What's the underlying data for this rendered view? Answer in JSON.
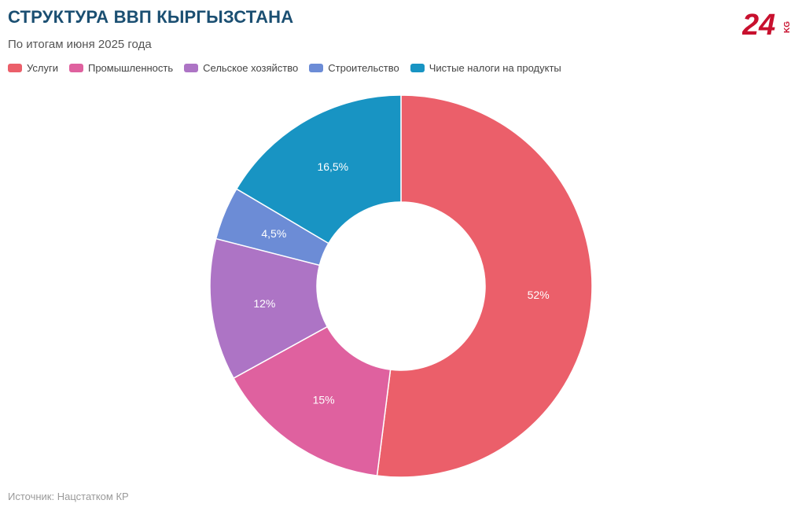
{
  "header": {
    "title": "СТРУКТУРА ВВП КЫРГЫЗСТАНА",
    "subtitle": "По итогам июня 2025 года"
  },
  "logo": {
    "number": "24",
    "suffix": "KG",
    "color": "#c8102e"
  },
  "footer": {
    "source": "Источник: Нацстатком КР"
  },
  "chart_data": {
    "type": "pie",
    "donut": true,
    "title": "СТРУКТУРА ВВП КЫРГЫЗСТАНА",
    "subtitle": "По итогам июня 2025 года",
    "legend_position": "top-left",
    "slices": [
      {
        "name": "Услуги",
        "value": 52,
        "label": "52%",
        "color": "#eb5f6a"
      },
      {
        "name": "Промышленность",
        "value": 15,
        "label": "15%",
        "color": "#df619f"
      },
      {
        "name": "Сельское хозяйство",
        "value": 12,
        "label": "12%",
        "color": "#ad74c5"
      },
      {
        "name": "Строительство",
        "value": 4.5,
        "label": "4,5%",
        "color": "#6c8cd6"
      },
      {
        "name": "Чистые налоги на продукты",
        "value": 16.5,
        "label": "16,5%",
        "color": "#1894c3"
      }
    ]
  }
}
